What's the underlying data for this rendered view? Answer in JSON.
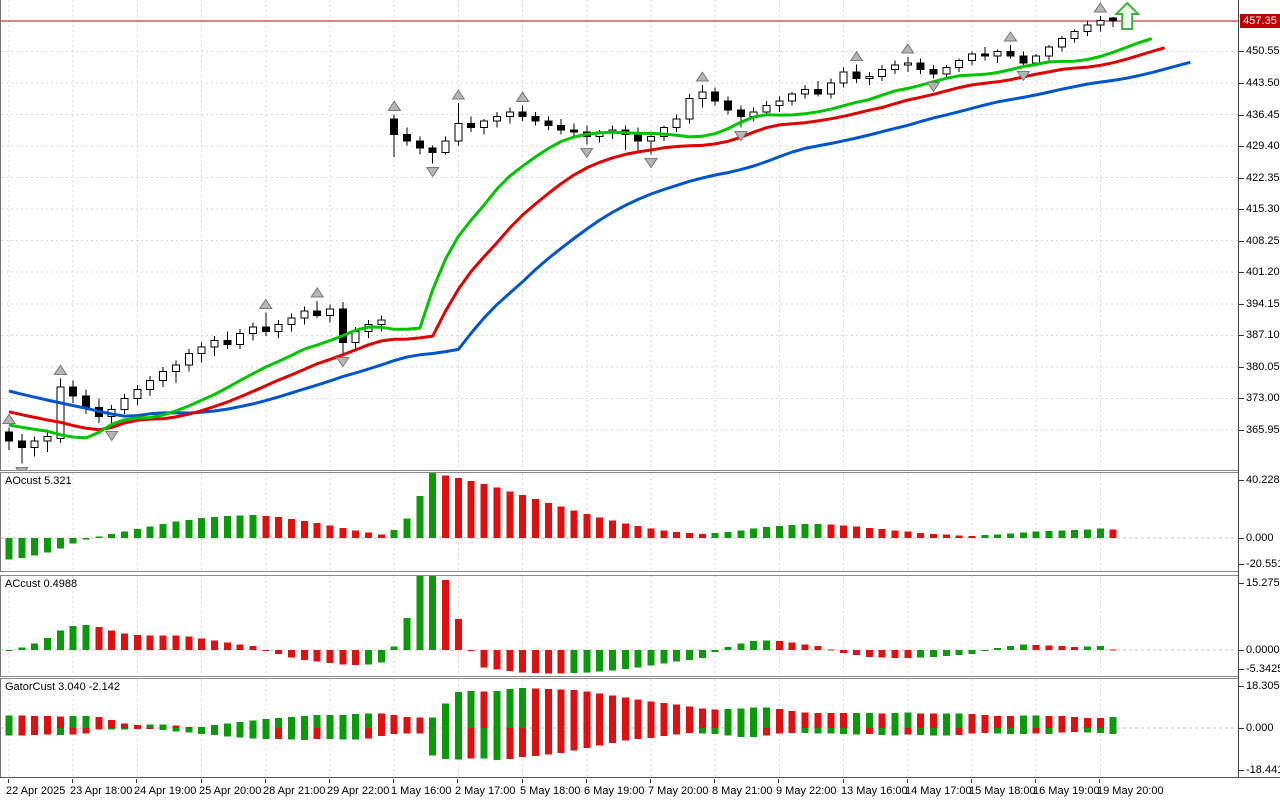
{
  "chart_data": {
    "type": "candlestick+indicators",
    "platform_style": "metatrader",
    "time_labels": [
      "22 Apr 2025",
      "23 Apr 18:00",
      "24 Apr 19:00",
      "25 Apr 20:00",
      "28 Apr 21:00",
      "29 Apr 22:00",
      "1 May 16:00",
      "2 May 17:00",
      "5 May 18:00",
      "6 May 19:00",
      "7 May 20:00",
      "8 May 21:00",
      "9 May 22:00",
      "13 May 16:00",
      "14 May 17:00",
      "15 May 18:00",
      "16 May 19:00",
      "19 May 20:00"
    ],
    "bars_per_tick": 5,
    "price_axis": {
      "current": "457.35",
      "current_value": 457.35,
      "ylim": [
        357.0,
        462.05
      ],
      "ticks": [
        {
          "label": "450.55",
          "value": 450.55
        },
        {
          "label": "443.50",
          "value": 443.5
        },
        {
          "label": "436.45",
          "value": 436.45
        },
        {
          "label": "429.40",
          "value": 429.4
        },
        {
          "label": "422.35",
          "value": 422.35
        },
        {
          "label": "415.30",
          "value": 415.3
        },
        {
          "label": "408.25",
          "value": 408.25
        },
        {
          "label": "401.20",
          "value": 401.2
        },
        {
          "label": "394.15",
          "value": 394.15
        },
        {
          "label": "387.10",
          "value": 387.1
        },
        {
          "label": "380.05",
          "value": 380.05
        },
        {
          "label": "373.00",
          "value": 373.0
        },
        {
          "label": "365.95",
          "value": 365.95
        }
      ]
    },
    "colors": {
      "background": "#ffffff",
      "grid": "#d9d9d9",
      "candle_outline": "#000000",
      "up_body": "#ffffff",
      "down_body": "#000000",
      "lips_green": "#00c400",
      "teeth_red": "#e00000",
      "jaw_blue": "#0055cc",
      "hist_green": "#0b9a0b",
      "hist_red": "#e01010",
      "fractal_gray": "#b5b5b5",
      "fractal_edge": "#7a7a7a",
      "price_line_red": "#cc0000",
      "badge_bg": "#c00000",
      "signal_green": "#3fae3f"
    },
    "current_price_line": 457.35,
    "signal_arrow": {
      "type": "up-arrow",
      "after_last_bar": true,
      "color": "#3fae3f"
    },
    "alligator": {
      "lines": [
        {
          "name": "jaw",
          "period": 13,
          "shift": 6,
          "color": "#0055cc"
        },
        {
          "name": "teeth",
          "period": 8,
          "shift": 4,
          "color": "#e00000"
        },
        {
          "name": "lips",
          "period": 5,
          "shift": 3,
          "color": "#00c400"
        }
      ]
    },
    "prehistory_medians": [
      389.0,
      388.4,
      387.9,
      388.2,
      387.3,
      386.6,
      387.0,
      386.0,
      385.4,
      384.8,
      385.1,
      384.2,
      383.5,
      383.8,
      382.8,
      382.0,
      381.3,
      381.7,
      380.5,
      379.6,
      380.0,
      378.6,
      377.5,
      376.4,
      375.2,
      373.9,
      372.6,
      371.4,
      370.3,
      369.3,
      368.4,
      367.6,
      366.9,
      366.3,
      365.8,
      365.4,
      365.1,
      364.8,
      364.5,
      364.2
    ],
    "candles": [
      [
        365.5,
        366.5,
        361.5,
        363.5
      ],
      [
        363.5,
        365,
        358.5,
        362
      ],
      [
        362,
        364.5,
        360,
        363.5
      ],
      [
        363.5,
        366,
        361,
        364.5
      ],
      [
        364,
        377.5,
        363,
        375.5
      ],
      [
        375.5,
        377,
        372,
        373.5
      ],
      [
        373.5,
        375,
        369.5,
        371
      ],
      [
        371,
        373,
        367.5,
        369
      ],
      [
        369,
        371.5,
        366.5,
        370.5
      ],
      [
        370.5,
        374,
        369.5,
        373
      ],
      [
        373,
        376,
        371.5,
        375
      ],
      [
        375,
        378,
        373.5,
        377
      ],
      [
        377,
        380,
        375.5,
        379
      ],
      [
        379,
        381.5,
        376.5,
        380.5
      ],
      [
        380.5,
        384,
        379,
        383
      ],
      [
        383,
        385.5,
        381,
        384.5
      ],
      [
        384.5,
        387,
        382.5,
        386
      ],
      [
        386,
        388,
        384,
        385
      ],
      [
        385,
        388.5,
        384,
        387.5
      ],
      [
        387.5,
        390,
        386,
        389
      ],
      [
        389,
        392.2,
        387,
        388
      ],
      [
        388,
        390.5,
        386.5,
        389.5
      ],
      [
        389.5,
        392,
        388,
        391
      ],
      [
        391,
        393.5,
        389.5,
        392.5
      ],
      [
        392.5,
        394.8,
        391,
        391.5
      ],
      [
        391.5,
        394,
        390,
        393
      ],
      [
        393,
        394.5,
        383,
        385.5
      ],
      [
        385.5,
        389,
        384,
        388
      ],
      [
        388,
        390.5,
        386.5,
        389.5
      ],
      [
        389.5,
        391.5,
        388,
        390.5
      ],
      [
        435.5,
        436.5,
        427,
        432
      ],
      [
        432,
        433.5,
        429.5,
        430.5
      ],
      [
        430.5,
        431.5,
        427.5,
        429
      ],
      [
        429,
        429.5,
        425.5,
        428
      ],
      [
        428,
        431.5,
        427.5,
        430.5
      ],
      [
        430.5,
        439,
        429.5,
        434.5
      ],
      [
        434.5,
        436,
        432.5,
        433.5
      ],
      [
        433.5,
        435.5,
        432,
        435
      ],
      [
        435,
        437,
        433.5,
        436
      ],
      [
        436,
        438,
        434.5,
        437
      ],
      [
        437,
        438.5,
        435,
        436
      ],
      [
        436,
        437,
        434,
        435
      ],
      [
        435,
        436,
        433,
        434
      ],
      [
        434,
        435.5,
        432,
        433
      ],
      [
        433,
        434.5,
        431.5,
        432.5
      ],
      [
        432.5,
        434,
        429.8,
        431.5
      ],
      [
        431.5,
        433,
        430.2,
        432.5
      ],
      [
        432.5,
        434,
        431,
        433
      ],
      [
        433,
        434,
        428.5,
        432
      ],
      [
        432,
        433.5,
        428,
        430.5
      ],
      [
        430.5,
        432.5,
        427.5,
        431.5
      ],
      [
        431.5,
        434,
        430.5,
        433.5
      ],
      [
        433.5,
        436.5,
        432.5,
        435.5
      ],
      [
        435.5,
        441,
        434.5,
        440
      ],
      [
        440,
        443,
        438,
        441.5
      ],
      [
        441.5,
        442.5,
        438.5,
        439.5
      ],
      [
        439.5,
        440.5,
        436.5,
        437.5
      ],
      [
        437.5,
        438.5,
        433.5,
        436
      ],
      [
        436,
        438,
        435,
        437
      ],
      [
        437,
        439.5,
        436,
        438.5
      ],
      [
        438.5,
        440.5,
        437,
        439.5
      ],
      [
        439.5,
        441.5,
        438.5,
        441
      ],
      [
        441,
        443,
        440,
        442
      ],
      [
        442,
        444,
        440.5,
        441
      ],
      [
        441,
        444.5,
        440,
        443.5
      ],
      [
        443.5,
        447,
        442.5,
        446
      ],
      [
        446,
        447.6,
        443.5,
        444.5
      ],
      [
        444.5,
        446,
        443,
        445
      ],
      [
        445,
        447.5,
        444,
        446.5
      ],
      [
        446.5,
        448.5,
        445.5,
        447.5
      ],
      [
        447.5,
        449.3,
        446,
        448
      ],
      [
        448,
        449,
        445.5,
        446.5
      ],
      [
        446.5,
        447.5,
        444.5,
        445.5
      ],
      [
        445.5,
        447.5,
        444.7,
        447
      ],
      [
        447,
        449,
        446,
        448.5
      ],
      [
        448.5,
        450.5,
        447.5,
        450
      ],
      [
        450,
        451.5,
        448.5,
        449.5
      ],
      [
        449.5,
        451,
        448,
        450.5
      ],
      [
        450.5,
        452,
        449,
        449.5
      ],
      [
        449.5,
        450.5,
        447,
        448
      ],
      [
        448,
        450,
        447.2,
        449.5
      ],
      [
        449.5,
        452,
        448.5,
        451.5
      ],
      [
        451.5,
        454,
        450.5,
        453.5
      ],
      [
        453.5,
        455.5,
        452.5,
        455
      ],
      [
        455,
        457.5,
        454,
        456.5
      ],
      [
        456.5,
        458.5,
        455,
        457.5
      ],
      [
        458,
        458.2,
        456,
        457.35
      ]
    ],
    "panels": [
      {
        "id": "ao",
        "label": "AOcust 5.321",
        "max": 40.228,
        "min": -20.551,
        "scale_labels": [
          {
            "label": "40.228",
            "value": 40.228
          },
          {
            "label": "0.000",
            "value": 0
          },
          {
            "label": "-20.551",
            "value": -20.551
          }
        ],
        "values": [
          -13.5,
          -12.5,
          -11,
          -9,
          -6.5,
          -3.5,
          -1,
          1,
          2.5,
          4,
          5.5,
          7,
          8.5,
          10,
          11.2,
          12.2,
          13,
          13.6,
          14,
          14.2,
          13.6,
          12.8,
          11.8,
          10.6,
          9.2,
          7.8,
          6.2,
          4.6,
          3.2,
          2.2,
          5,
          12,
          26,
          40.2,
          38.8,
          37.2,
          35.4,
          33.4,
          31.2,
          28.9,
          26.5,
          24.1,
          21.7,
          19.3,
          17,
          14.8,
          12.7,
          10.7,
          8.9,
          7.3,
          5.9,
          4.7,
          3.7,
          2.9,
          2.3,
          2.9,
          3.7,
          4.7,
          5.7,
          6.7,
          7.5,
          8.1,
          8.5,
          8.7,
          8.3,
          7.7,
          7,
          6.2,
          5.4,
          4.6,
          3.8,
          3.1,
          2.5,
          2,
          1.6,
          1.3,
          1.7,
          2.2,
          2.8,
          3.4,
          3.9,
          4.3,
          4.6,
          4.9,
          5.3,
          5.8,
          5.321
        ]
      },
      {
        "id": "ac",
        "label": "ACcust 0.4988",
        "max": 15.2759,
        "min": -5.3425,
        "scale_labels": [
          {
            "label": "15.2759",
            "value": 15.2759
          },
          {
            "label": "0.0000",
            "value": 0
          },
          {
            "label": "-5.3425",
            "value": -5.3425
          }
        ],
        "derived_from": "ao_minus_sma5"
      },
      {
        "id": "gator",
        "label": "GatorCust 3.040 -2.142",
        "max": 18.305,
        "min": -18.441,
        "scale_labels": [
          {
            "label": "18.305",
            "value": 18.305
          },
          {
            "label": "0.000",
            "value": 0
          },
          {
            "label": "-18.441",
            "value": -18.441
          }
        ],
        "derived_from": "alligator_spreads"
      }
    ]
  }
}
